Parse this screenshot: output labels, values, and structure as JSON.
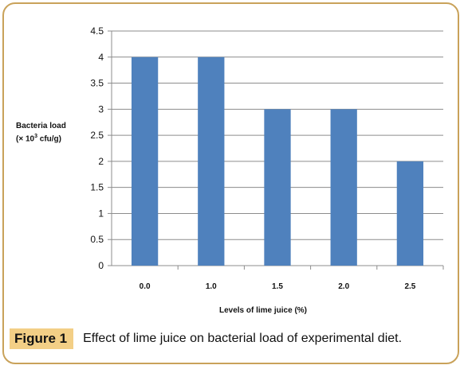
{
  "chart_data": {
    "type": "bar",
    "categories": [
      "0.0",
      "1.0",
      "1.5",
      "2.0",
      "2.5"
    ],
    "values": [
      4,
      4,
      3,
      3,
      2
    ],
    "ylim": [
      0,
      4.5
    ],
    "yticks": [
      "0",
      "0.5",
      "1",
      "1.5",
      "2",
      "2.5",
      "3",
      "3.5",
      "4",
      "4.5"
    ],
    "ylabel_line1": "Bacteria load",
    "ylabel_line2_prefix": "(× 10",
    "ylabel_line2_sup": "3",
    "ylabel_line2_suffix": " cfu/g)",
    "xlabel": "Levels of lime juice (%)",
    "grid": true,
    "bar_color": "#4f81bd"
  },
  "caption": {
    "tag": "Figure 1",
    "text": "Effect of lime juice on bacterial load of experimental diet."
  },
  "colors": {
    "frame": "#c9a25a",
    "tag_background": "#f3cf86"
  }
}
